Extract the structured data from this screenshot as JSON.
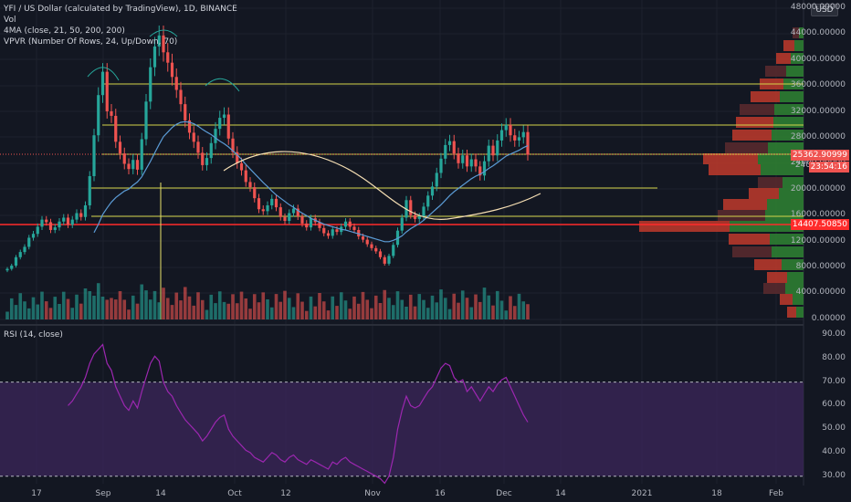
{
  "header": {
    "title": "YFI / US Dollar (calculated by TradingView), 1D, BINANCE",
    "vol_label": "Vol",
    "ma_label": "4MA (close, 21, 50, 200, 200)",
    "vpvr_label": "VPVR (Number Of Rows, 24, Up/Down, 70)",
    "rsi_label": "RSI (14, close)"
  },
  "currency": "USD",
  "price_badges": {
    "current_price": "25362.90999",
    "countdown": "23:54:16",
    "partial_tick": "240",
    "level_price": "14407.50850"
  },
  "colors": {
    "up": "#26a69a",
    "down": "#ef5350",
    "ma21": "#5b9bd5",
    "ma50": "#f5deb3",
    "level": "#d4d44a",
    "red_level": "#ff2b2b",
    "rsi_line": "#9c27b0",
    "rsi_band": "#3a2558"
  },
  "chart_data": [
    {
      "type": "candlestick",
      "title": "YFI / US Dollar (calculated by TradingView), 1D, BINANCE",
      "x_ticks": [
        "17",
        "Sep",
        "14",
        "Oct",
        "12",
        "Nov",
        "16",
        "Dec",
        "14",
        "2021",
        "18",
        "Feb"
      ],
      "y_ticks": [
        "48000.00000",
        "44000.00000",
        "40000.00000",
        "36000.00000",
        "32000.00000",
        "28000.00000",
        "24000.00000",
        "20000.00000",
        "16000.00000",
        "12000.00000",
        "8000.00000",
        "4000.00000",
        "0.00000"
      ],
      "ylim": [
        0,
        48000
      ],
      "close": [
        7800,
        8300,
        9600,
        10400,
        11200,
        12600,
        13200,
        14300,
        15400,
        15000,
        13800,
        14200,
        15100,
        15700,
        14600,
        15400,
        16400,
        15800,
        17600,
        22100,
        28400,
        34600,
        38200,
        32100,
        31400,
        27400,
        25600,
        24000,
        23200,
        24600,
        23100,
        27800,
        33600,
        38900,
        42100,
        43800,
        41200,
        39600,
        37400,
        35400,
        33200,
        30700,
        28800,
        27400,
        25700,
        23800,
        24900,
        27200,
        29400,
        31100,
        31600,
        27900,
        25800,
        24100,
        23000,
        21200,
        20400,
        18700,
        17000,
        16700,
        17600,
        18600,
        17300,
        15800,
        15200,
        16400,
        17100,
        15900,
        14800,
        14200,
        15600,
        15000,
        14100,
        13300,
        12900,
        13900,
        13500,
        14300,
        15100,
        14300,
        13800,
        12800,
        12300,
        11600,
        11000,
        10500,
        9600,
        8600,
        9800,
        11500,
        13700,
        15700,
        18400,
        16100,
        15500,
        15900,
        17400,
        19100,
        20500,
        22600,
        24800,
        26900,
        27500,
        25600,
        24100,
        25300,
        23600,
        24700,
        23600,
        22200,
        24400,
        26800,
        25300,
        27600,
        29200,
        30000,
        28400,
        27600,
        28100,
        28900,
        25400
      ],
      "ma21": [
        null,
        null,
        null,
        null,
        null,
        null,
        null,
        null,
        null,
        null,
        null,
        null,
        null,
        null,
        null,
        null,
        null,
        null,
        null,
        null,
        13400,
        14700,
        16200,
        17200,
        18100,
        18800,
        19300,
        19800,
        20100,
        20700,
        21200,
        22000,
        23200,
        24400,
        25700,
        27000,
        28200,
        28900,
        29600,
        30100,
        30400,
        30500,
        30400,
        30200,
        29800,
        29300,
        28900,
        28500,
        28000,
        27500,
        27100,
        26600,
        26000,
        25400,
        24700,
        23900,
        23200,
        22500,
        21800,
        21100,
        20500,
        19800,
        19200,
        18700,
        18200,
        17700,
        17300,
        16800,
        16400,
        16000,
        15600,
        15300,
        15000,
        14700,
        14500,
        14300,
        14100,
        13900,
        13800,
        13600,
        13400,
        13200,
        13000,
        12800,
        12600,
        12400,
        12200,
        12000,
        12000,
        12200,
        12500,
        12900,
        13500,
        14000,
        14400,
        14800,
        15300,
        15900,
        16500,
        17100,
        17700,
        18400,
        19100,
        19700,
        20200,
        20700,
        21200,
        21700,
        22100,
        22400,
        22800,
        23300,
        23700,
        24200,
        24700,
        25200,
        25500,
        25800,
        26100,
        26500,
        26800
      ]
    },
    {
      "type": "bar",
      "title": "Vol"
    },
    {
      "type": "line",
      "title": "RSI (14, close)",
      "y_ticks": [
        "90.00",
        "80.00",
        "70.00",
        "60.00",
        "50.00",
        "40.00",
        "30.00"
      ],
      "ylim": [
        26,
        92
      ],
      "band": [
        30,
        70
      ],
      "values": [
        null,
        null,
        null,
        null,
        null,
        null,
        null,
        null,
        null,
        null,
        null,
        null,
        null,
        null,
        60,
        62,
        65,
        68,
        72,
        78,
        82,
        84,
        86,
        78,
        75,
        68,
        64,
        60,
        58,
        62,
        59,
        66,
        72,
        78,
        81,
        79,
        70,
        66,
        64,
        60,
        57,
        54,
        52,
        50,
        48,
        45,
        47,
        50,
        53,
        55,
        56,
        50,
        47,
        45,
        43,
        41,
        40,
        38,
        37,
        36,
        38,
        40,
        39,
        37,
        36,
        38,
        39,
        37,
        36,
        35,
        37,
        36,
        35,
        34,
        33,
        36,
        35,
        37,
        38,
        36,
        35,
        34,
        33,
        32,
        31,
        30,
        29,
        27,
        30,
        38,
        50,
        58,
        64,
        60,
        59,
        60,
        63,
        66,
        68,
        72,
        76,
        78,
        77,
        72,
        70,
        71,
        66,
        68,
        65,
        62,
        65,
        68,
        66,
        69,
        71,
        72,
        68,
        64,
        60,
        56,
        53
      ]
    }
  ]
}
